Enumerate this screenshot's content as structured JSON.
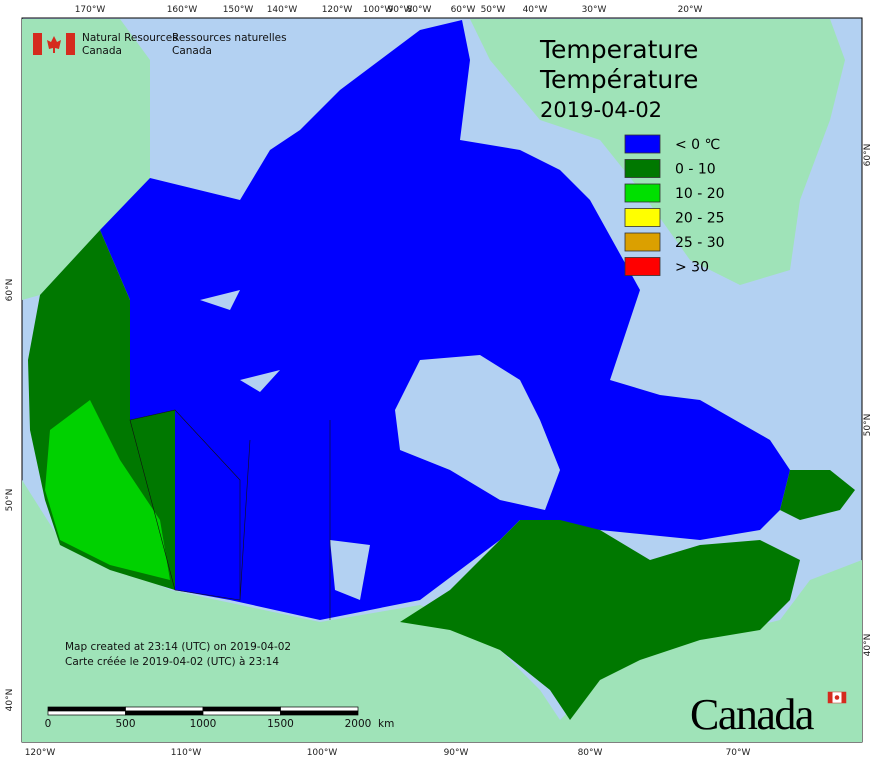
{
  "header": {
    "agency_en": [
      "Natural Resources",
      "Canada"
    ],
    "agency_fr": [
      "Ressources naturelles",
      "Canada"
    ]
  },
  "title": {
    "line1": "Temperature",
    "line2": "Température",
    "date": "2019-04-02"
  },
  "legend": [
    {
      "label": "< 0 ℃",
      "color": "#0000ff"
    },
    {
      "label": "0 - 10",
      "color": "#007800"
    },
    {
      "label": "10 - 20",
      "color": "#00e000"
    },
    {
      "label": "20 - 25",
      "color": "#ffff00"
    },
    {
      "label": "25 - 30",
      "color": "#dba000"
    },
    {
      "label": "> 30",
      "color": "#ff0000"
    }
  ],
  "graticule": {
    "top": [
      "170°W",
      "160°W",
      "150°W",
      "140°W",
      "120°W",
      "100°W",
      "90°W",
      "80°W",
      "60°W",
      "50°W",
      "40°W",
      "30°W",
      "20°W"
    ],
    "bottom": [
      "120°W",
      "110°W",
      "100°W",
      "90°W",
      "80°W",
      "70°W"
    ],
    "left": [
      "60°N",
      "50°N",
      "40°N"
    ],
    "right": [
      "60°N",
      "50°N",
      "40°N"
    ]
  },
  "notes": [
    "Map created at 23:14 (UTC) on 2019-04-02",
    "Carte créée le 2019-04-02 (UTC) à 23:14"
  ],
  "scale_bar": {
    "ticks": [
      0,
      500,
      1000,
      1500,
      2000
    ],
    "unit": "km"
  },
  "wordmark": "Canada"
}
